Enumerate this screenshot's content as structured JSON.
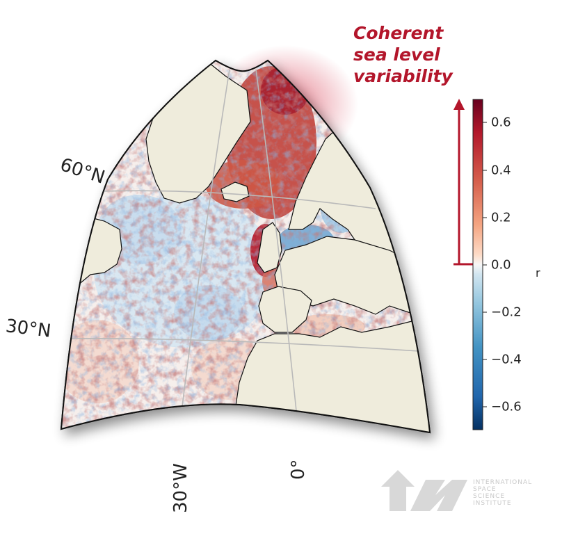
{
  "map": {
    "projection": "conic",
    "ocean_field": "correlation of sea level with coherent mode (r)",
    "colors": {
      "land": "#efecdc",
      "coast": "#111111",
      "graticule": "#b9b9b9",
      "frame": "#111111"
    },
    "latitude_labels": [
      "60°N",
      "30°N"
    ],
    "longitude_labels": [
      "30°W",
      "0°"
    ]
  },
  "annotation": {
    "lines": [
      "Coherent",
      "sea level",
      "variability"
    ],
    "color": "#b3162b",
    "arrow_range": [
      0.0,
      0.7
    ]
  },
  "colorbar": {
    "label": "r",
    "ticks": [
      "0.6",
      "0.4",
      "0.2",
      "0.0",
      "−0.2",
      "−0.4",
      "−0.6"
    ],
    "range": [
      -0.7,
      0.7
    ],
    "colormap": "RdBu_r"
  },
  "logo": {
    "lines": [
      "INTERNATIONAL",
      "SPACE",
      "SCIENCE",
      "INSTITUTE"
    ]
  }
}
